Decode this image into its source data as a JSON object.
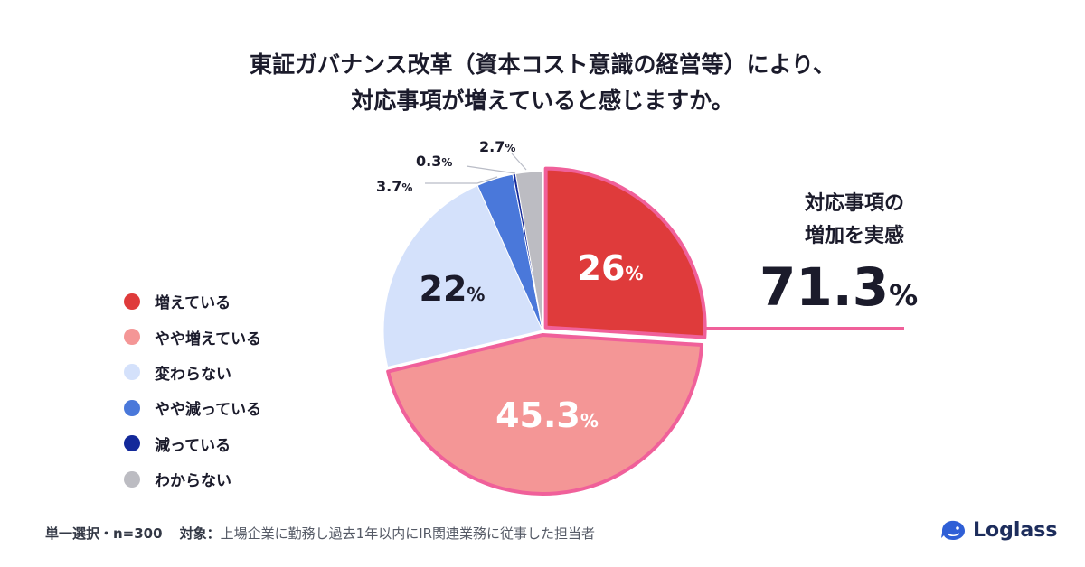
{
  "title_line1": "東証ガバナンス改革（資本コスト意識の経営等）により、",
  "title_line2": "対応事項が増えていると感じますか。",
  "chart_data": {
    "type": "pie",
    "title": "東証ガバナンス改革（資本コスト意識の経営等）により、対応事項が増えていると感じますか。",
    "slices": [
      {
        "label": "増えている",
        "value": 26,
        "display": "26",
        "color": "#df3b3b",
        "highlight": true
      },
      {
        "label": "やや増えている",
        "value": 45.3,
        "display": "45.3",
        "color": "#f49696",
        "highlight": true
      },
      {
        "label": "変わらない",
        "value": 22,
        "display": "22",
        "color": "#d4e1fb",
        "highlight": false
      },
      {
        "label": "やや減っている",
        "value": 3.7,
        "display": "3.7",
        "color": "#4a78da",
        "highlight": false
      },
      {
        "label": "減っている",
        "value": 0.3,
        "display": "0.3",
        "color": "#13299a",
        "highlight": false
      },
      {
        "label": "わからない",
        "value": 2.7,
        "display": "2.7",
        "color": "#bcbcc2",
        "highlight": false
      }
    ],
    "unit": "%",
    "legend_position": "left",
    "highlight_color": "#f0609a"
  },
  "callout": {
    "line1": "対応事項の",
    "line2": "増加を実感",
    "value": "71.3",
    "unit": "%"
  },
  "footnote": {
    "method": "単一選択・n=300",
    "target_label": "対象：",
    "target_text": "上場企業に勤務し過去1年以内にIR関連業務に従事した担当者"
  },
  "logo": {
    "text": "Loglass"
  }
}
